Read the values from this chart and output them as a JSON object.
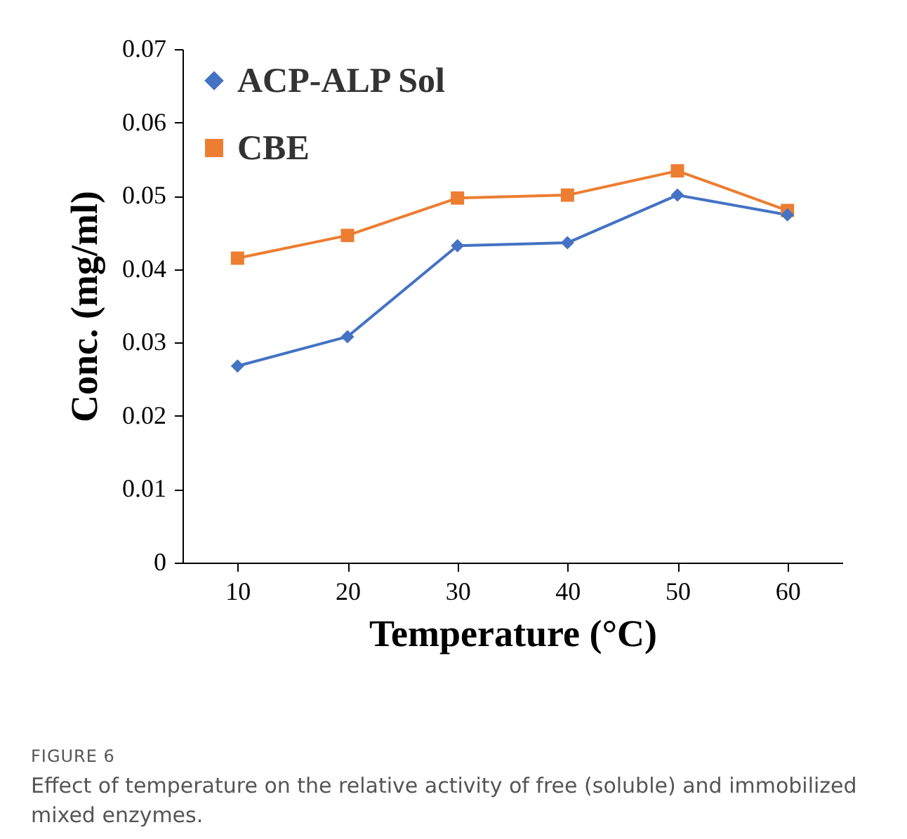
{
  "chart_data": {
    "type": "line",
    "xlabel": "Temperature (°C)",
    "ylabel": "Conc. (mg/ml)",
    "categories": [
      "10",
      "20",
      "30",
      "40",
      "50",
      "60"
    ],
    "series": [
      {
        "name": "ACP-ALP Sol",
        "color": "#4472c4",
        "marker": "diamond",
        "values": [
          0.0268,
          0.0308,
          0.0432,
          0.0436,
          0.0501,
          0.0474
        ]
      },
      {
        "name": "CBE",
        "color": "#ed7d31",
        "marker": "square",
        "values": [
          0.0415,
          0.0446,
          0.0497,
          0.0501,
          0.0534,
          0.048
        ]
      }
    ],
    "ylim": [
      0,
      0.07
    ],
    "yticks": [
      0,
      0.01,
      0.02,
      0.03,
      0.04,
      0.05,
      0.06,
      0.07
    ],
    "grid": false,
    "legend": "top left",
    "annotations": [
      "FIGURE 6",
      "Effect of temperature on the relative activity of free (soluble) and immobilized mixed enzymes."
    ]
  }
}
